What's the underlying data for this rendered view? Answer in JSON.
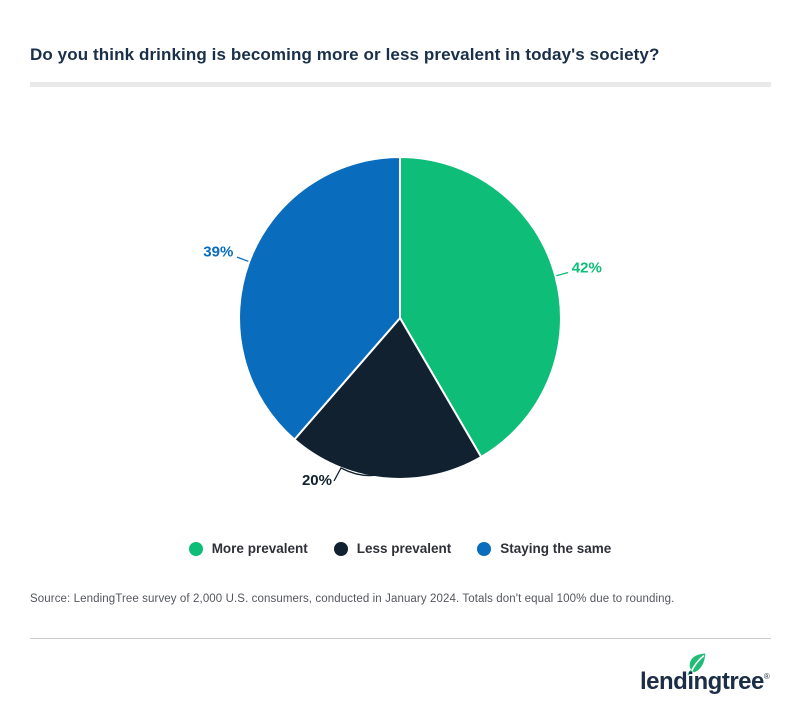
{
  "header": {
    "title": "Do you think drinking is becoming more or less prevalent in today's society?"
  },
  "chart_data": {
    "type": "pie",
    "title": "Do you think drinking is becoming more or less prevalent in today's society?",
    "categories": [
      "More prevalent",
      "Less prevalent",
      "Staying the same"
    ],
    "values": [
      42,
      20,
      39
    ],
    "labels": [
      "42%",
      "20%",
      "39%"
    ],
    "unit": "%",
    "colors": [
      "#0dbd78",
      "#11212f",
      "#0a6cbd"
    ],
    "start_angle_deg": 0,
    "direction": "clockwise",
    "legend_position": "bottom",
    "note": "Totals don't equal 100% due to rounding."
  },
  "source": {
    "text": "Source: LendingTree survey of 2,000 U.S. consumers, conducted in January 2024. Totals don't equal 100% due to rounding."
  },
  "footer": {
    "brand": "lendingtree",
    "registered_mark": "®",
    "brand_color": "#1c2e47",
    "leaf_color": "#1fbd76"
  }
}
